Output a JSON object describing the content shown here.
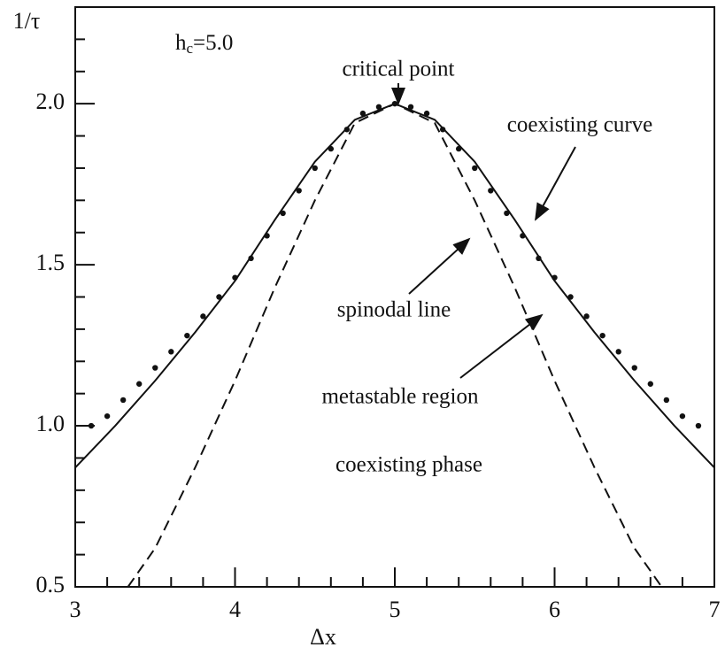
{
  "chart_data": {
    "type": "line",
    "y_label": "1/τ",
    "x_label": "Δx",
    "annotations": {
      "hc": {
        "main": "h",
        "sub": "c",
        "rest": "=5.0"
      },
      "critical_point": "critical point",
      "coexisting_curve": "coexisting curve",
      "spinodal_line": "spinodal line",
      "metastable_region": "metastable region",
      "coexisting_phase": "coexisting phase"
    },
    "xlim": [
      3,
      7
    ],
    "ylim": [
      0.5,
      2.3
    ],
    "xticks": [
      3,
      4,
      5,
      6,
      7
    ],
    "yticks": [
      {
        "value": 0.5,
        "label": "0.5"
      },
      {
        "value": 1.0,
        "label": "1.0"
      },
      {
        "value": 1.5,
        "label": "1.5"
      },
      {
        "value": 2.0,
        "label": "2.0"
      }
    ],
    "xminor": [
      3.2,
      3.4,
      3.6,
      3.8,
      4.2,
      4.4,
      4.6,
      4.8,
      5.2,
      5.4,
      5.6,
      5.8,
      6.2,
      6.4,
      6.6,
      6.8
    ],
    "yminor": [
      0.6,
      0.7,
      0.8,
      0.9,
      1.1,
      1.2,
      1.3,
      1.4,
      1.6,
      1.7,
      1.8,
      1.9,
      2.1,
      2.2
    ],
    "series": [
      {
        "style": "solid",
        "color": "#111",
        "x": [
          3,
          3.25,
          3.5,
          3.75,
          4,
          4.25,
          4.5,
          4.75,
          5,
          5.25,
          5.5,
          5.75,
          6,
          6.25,
          6.5,
          6.75,
          7
        ],
        "values": [
          0.87,
          1.0,
          1.14,
          1.29,
          1.45,
          1.64,
          1.82,
          1.95,
          2.0,
          1.95,
          1.82,
          1.64,
          1.45,
          1.29,
          1.14,
          1.0,
          0.87
        ]
      },
      {
        "style": "dashed",
        "color": "#111",
        "x": [
          3.33,
          3.5,
          3.75,
          4,
          4.25,
          4.5,
          4.75,
          5,
          5.25,
          5.5,
          5.75,
          6,
          6.25,
          6.5,
          6.67
        ],
        "values": [
          0.5,
          0.62,
          0.87,
          1.14,
          1.43,
          1.7,
          1.94,
          2.0,
          1.94,
          1.7,
          1.43,
          1.14,
          0.87,
          0.62,
          0.5
        ]
      },
      {
        "style": "dots",
        "color": "#111",
        "x": [
          3.1,
          3.2,
          3.3,
          3.4,
          3.5,
          3.6,
          3.7,
          3.8,
          3.9,
          4.0,
          4.1,
          4.2,
          4.3,
          4.4,
          4.5,
          4.6,
          4.7,
          4.8,
          4.9,
          5.0,
          5.1,
          5.2,
          5.3,
          5.4,
          5.5,
          5.6,
          5.7,
          5.8,
          5.9,
          6.0,
          6.1,
          6.2,
          6.3,
          6.4,
          6.5,
          6.6,
          6.7,
          6.8,
          6.9
        ],
        "values": [
          1.0,
          1.03,
          1.08,
          1.13,
          1.18,
          1.23,
          1.28,
          1.34,
          1.4,
          1.46,
          1.52,
          1.59,
          1.66,
          1.73,
          1.8,
          1.86,
          1.92,
          1.97,
          1.99,
          2.0,
          1.99,
          1.97,
          1.92,
          1.86,
          1.8,
          1.73,
          1.66,
          1.59,
          1.52,
          1.46,
          1.4,
          1.34,
          1.28,
          1.23,
          1.18,
          1.13,
          1.08,
          1.03,
          1.0
        ]
      }
    ]
  }
}
